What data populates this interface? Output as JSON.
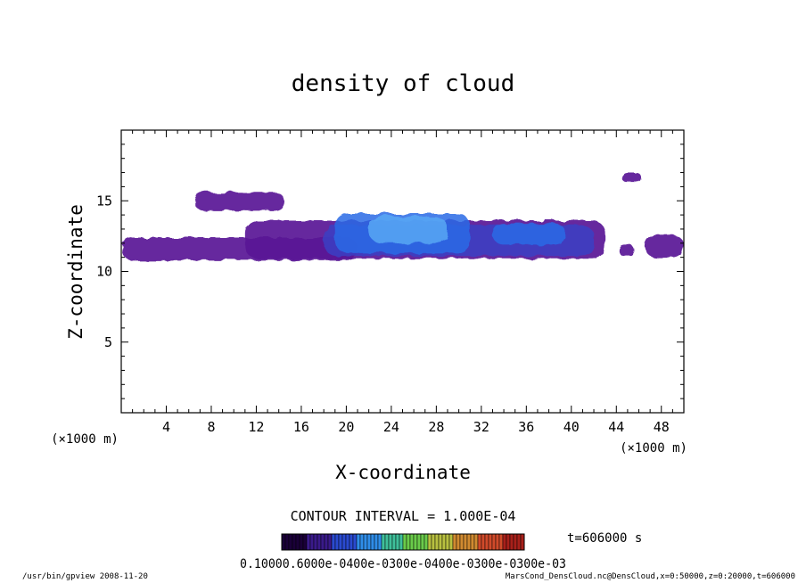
{
  "chart_data": {
    "type": "heatmap",
    "title": "density of cloud",
    "xlabel": "X-coordinate",
    "ylabel": "Z-coordinate",
    "x_unit_left": "(×1000 m)",
    "x_unit_right": "(×1000 m)",
    "xlim": [
      0,
      50
    ],
    "ylim": [
      0,
      20
    ],
    "x_ticks": [
      "4",
      "8",
      "12",
      "16",
      "20",
      "24",
      "28",
      "32",
      "36",
      "40",
      "44",
      "48"
    ],
    "y_ticks": [
      "5",
      "10",
      "15"
    ],
    "contour_interval": "CONTOUR INTERVAL = 1.000E-04",
    "time_label": "t=606000 s",
    "colorbar_labels": "0.10000.6000e-0400e-0300e-0400e-0300e-0300e-03",
    "colorbar_colors": [
      "#1a0038",
      "#3a1a8a",
      "#2a4ad0",
      "#2f8de8",
      "#3fbf9a",
      "#6acb4a",
      "#b8c040",
      "#d08a30",
      "#d04a2a",
      "#a8201a"
    ],
    "regions": [
      {
        "level": 1,
        "x0": 0,
        "x1": 21,
        "z0": 10.8,
        "z1": 12.4
      },
      {
        "level": 1,
        "x0": 11,
        "x1": 43,
        "z0": 10.9,
        "z1": 13.6
      },
      {
        "level": 1,
        "x0": 6.5,
        "x1": 14.5,
        "z0": 14.3,
        "z1": 15.6
      },
      {
        "level": 1,
        "x0": 44.5,
        "x1": 46.2,
        "z0": 16.3,
        "z1": 17.0
      },
      {
        "level": 1,
        "x0": 46.5,
        "x1": 50,
        "z0": 11.0,
        "z1": 12.6
      },
      {
        "level": 1,
        "x0": 44.2,
        "x1": 45.6,
        "z0": 11.1,
        "z1": 11.9
      },
      {
        "level": 2,
        "x0": 18,
        "x1": 42,
        "z0": 11.1,
        "z1": 13.3
      },
      {
        "level": 3,
        "x0": 19,
        "x1": 31,
        "z0": 11.3,
        "z1": 14.1
      },
      {
        "level": 3,
        "x0": 33,
        "x1": 39.5,
        "z0": 11.9,
        "z1": 13.4
      },
      {
        "level": 4,
        "x0": 22,
        "x1": 29,
        "z0": 12.0,
        "z1": 13.9
      }
    ]
  },
  "footer": {
    "left": "/usr/bin/gpview   2008-11-20",
    "right": "MarsCond_DensCloud.nc@DensCloud,x=0:50000,z=0:20000,t=606000"
  }
}
